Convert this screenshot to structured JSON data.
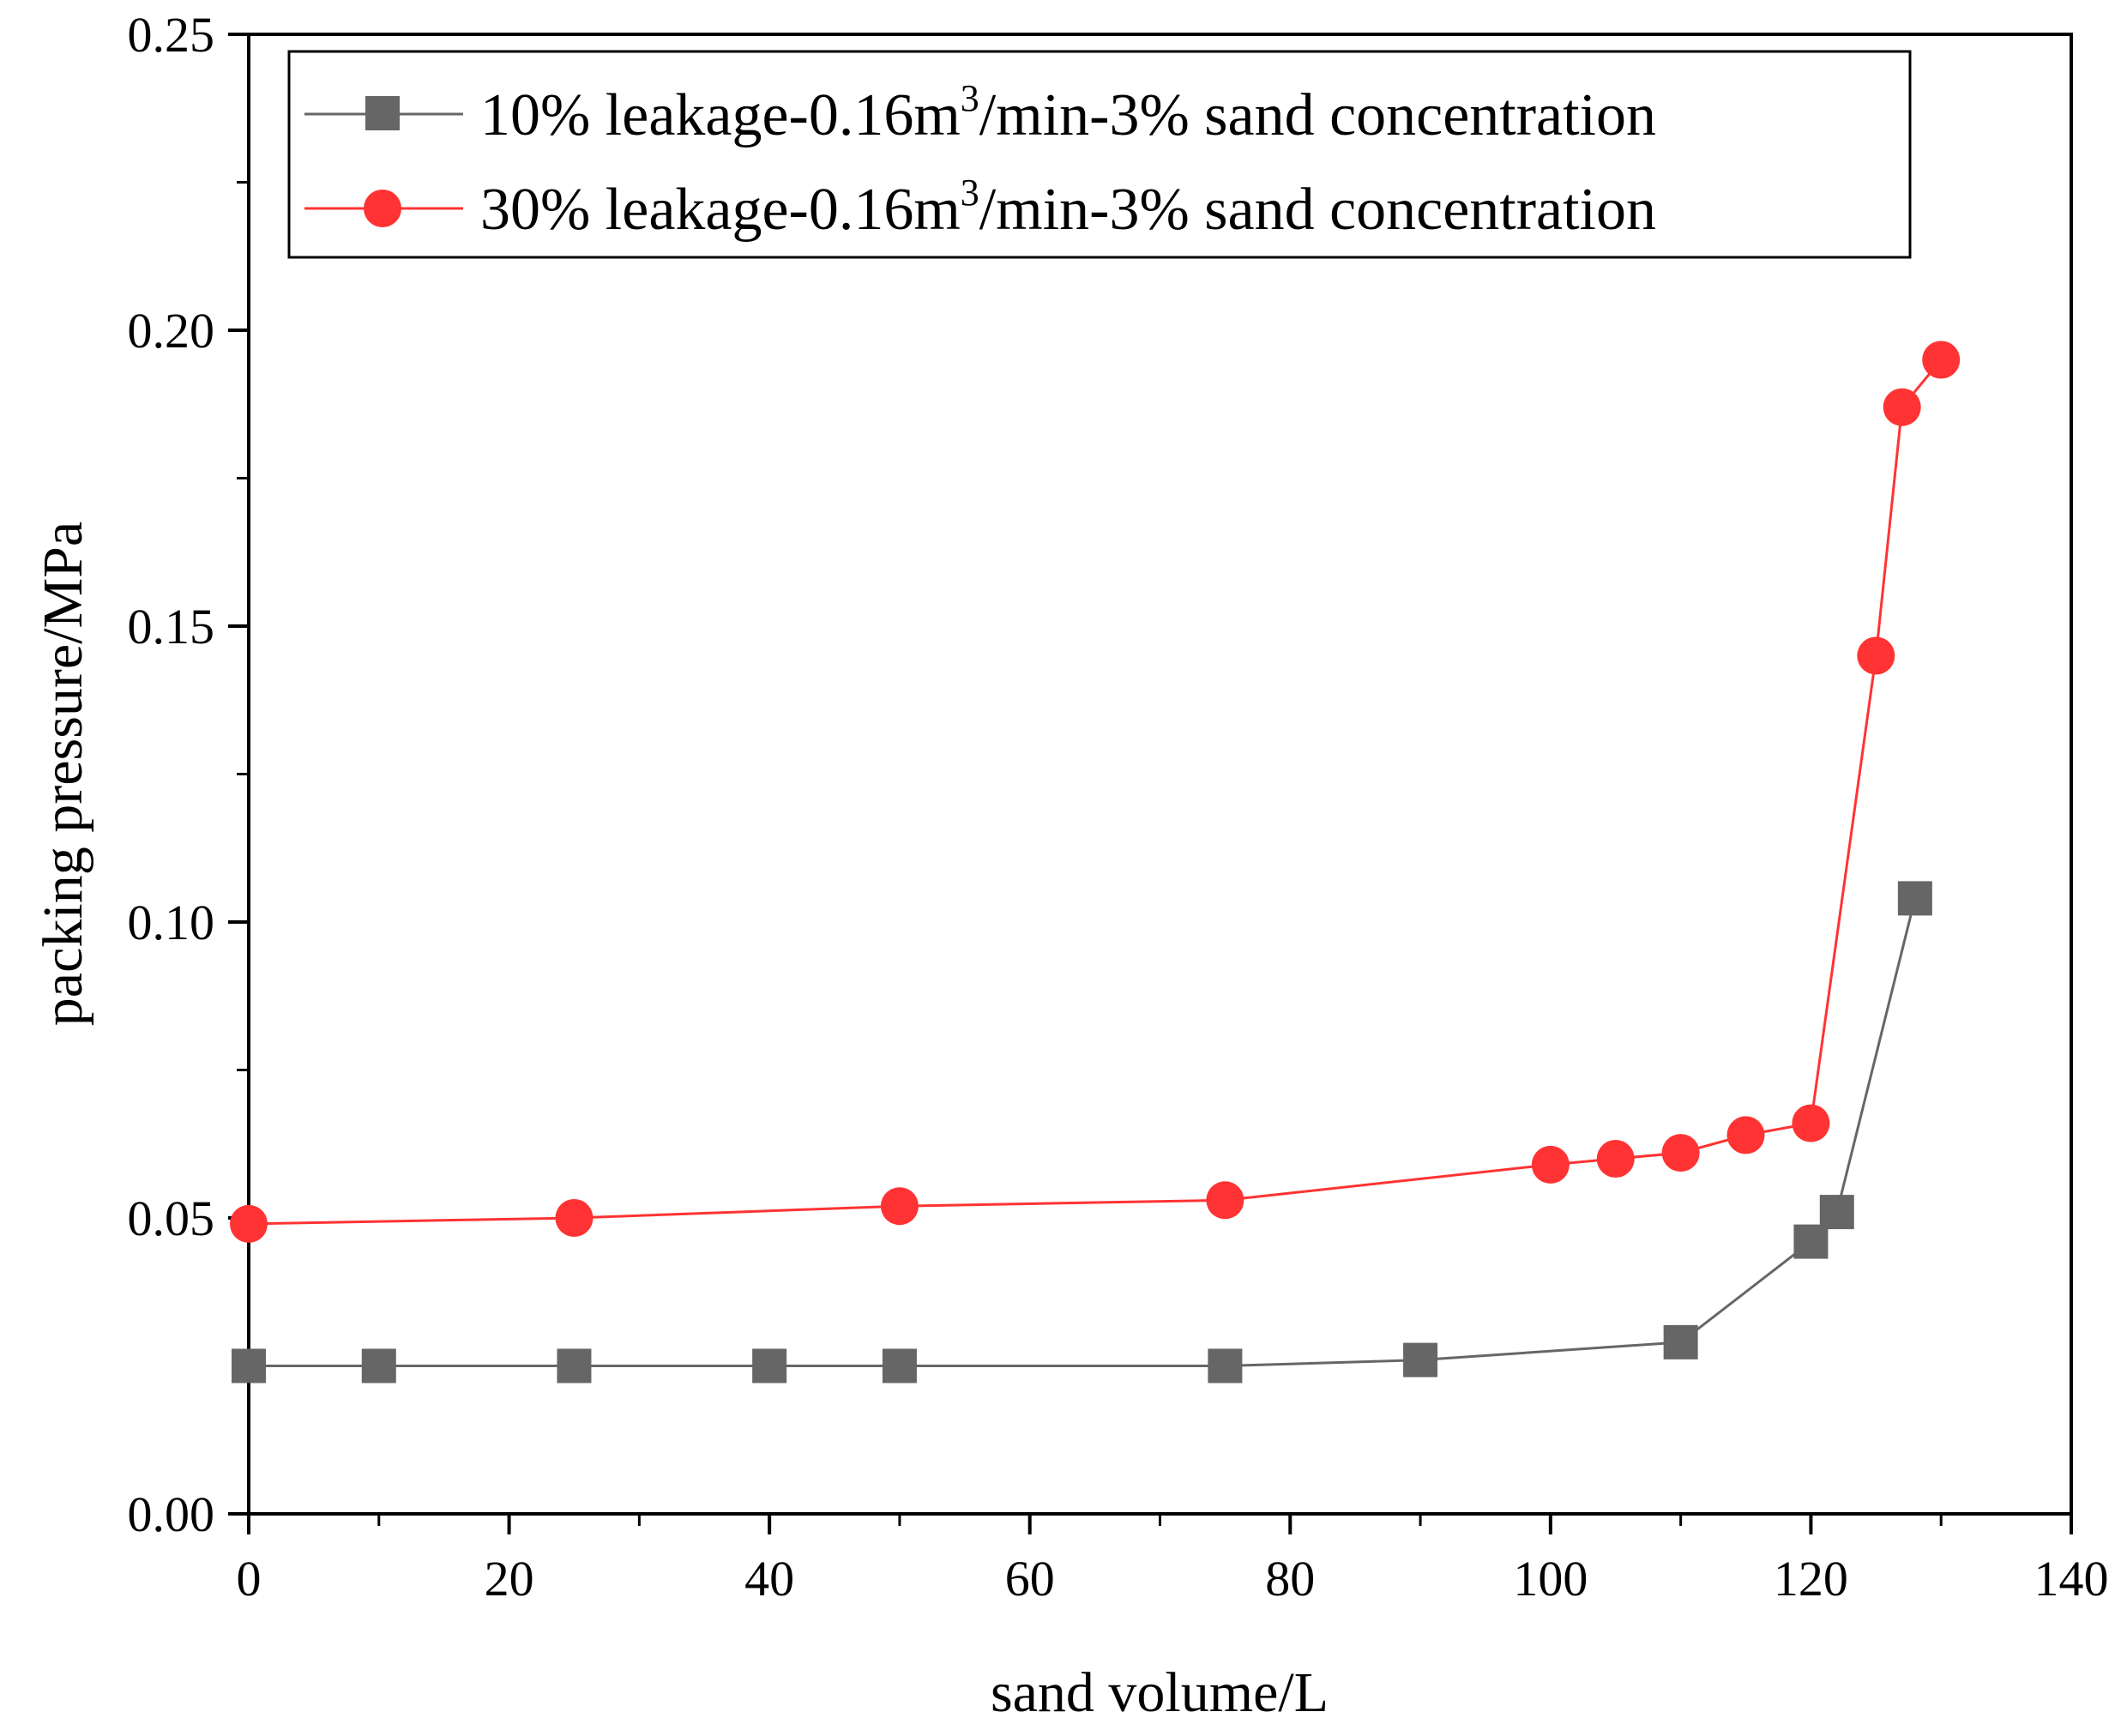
{
  "chart_data": {
    "type": "line",
    "xlabel": "sand volume/L",
    "ylabel": "packing pressure/MPa",
    "xlim": [
      0,
      140
    ],
    "ylim": [
      0,
      0.25
    ],
    "x_ticks": [
      "0",
      "20",
      "40",
      "60",
      "80",
      "100",
      "120",
      "140"
    ],
    "y_ticks": [
      "0.00",
      "0.05",
      "0.10",
      "0.15",
      "0.20",
      "0.25"
    ],
    "grid": false,
    "legend_position": "top-left",
    "series": [
      {
        "name": "10% leakage-0.16m3/min-3% sand concentration",
        "legend_pre": "10% leakage-0.16m",
        "legend_sup": "3",
        "legend_post": "/min-3% sand concentration",
        "color": "#666666",
        "marker": "square",
        "x": [
          0,
          10,
          25,
          40,
          50,
          75,
          90,
          110,
          120,
          122,
          128
        ],
        "y": [
          0.025,
          0.025,
          0.025,
          0.025,
          0.025,
          0.025,
          0.026,
          0.029,
          0.046,
          0.051,
          0.104
        ]
      },
      {
        "name": "30% leakage-0.16m3/min-3% sand concentration",
        "legend_pre": "30% leakage-0.16m",
        "legend_sup": "3",
        "legend_post": "/min-3% sand concentration",
        "color": "#ff3333",
        "marker": "circle",
        "x": [
          0,
          25,
          50,
          75,
          100,
          105,
          110,
          115,
          120,
          125,
          127,
          130
        ],
        "y": [
          0.049,
          0.05,
          0.052,
          0.053,
          0.059,
          0.06,
          0.061,
          0.064,
          0.066,
          0.145,
          0.187,
          0.195
        ]
      }
    ]
  }
}
